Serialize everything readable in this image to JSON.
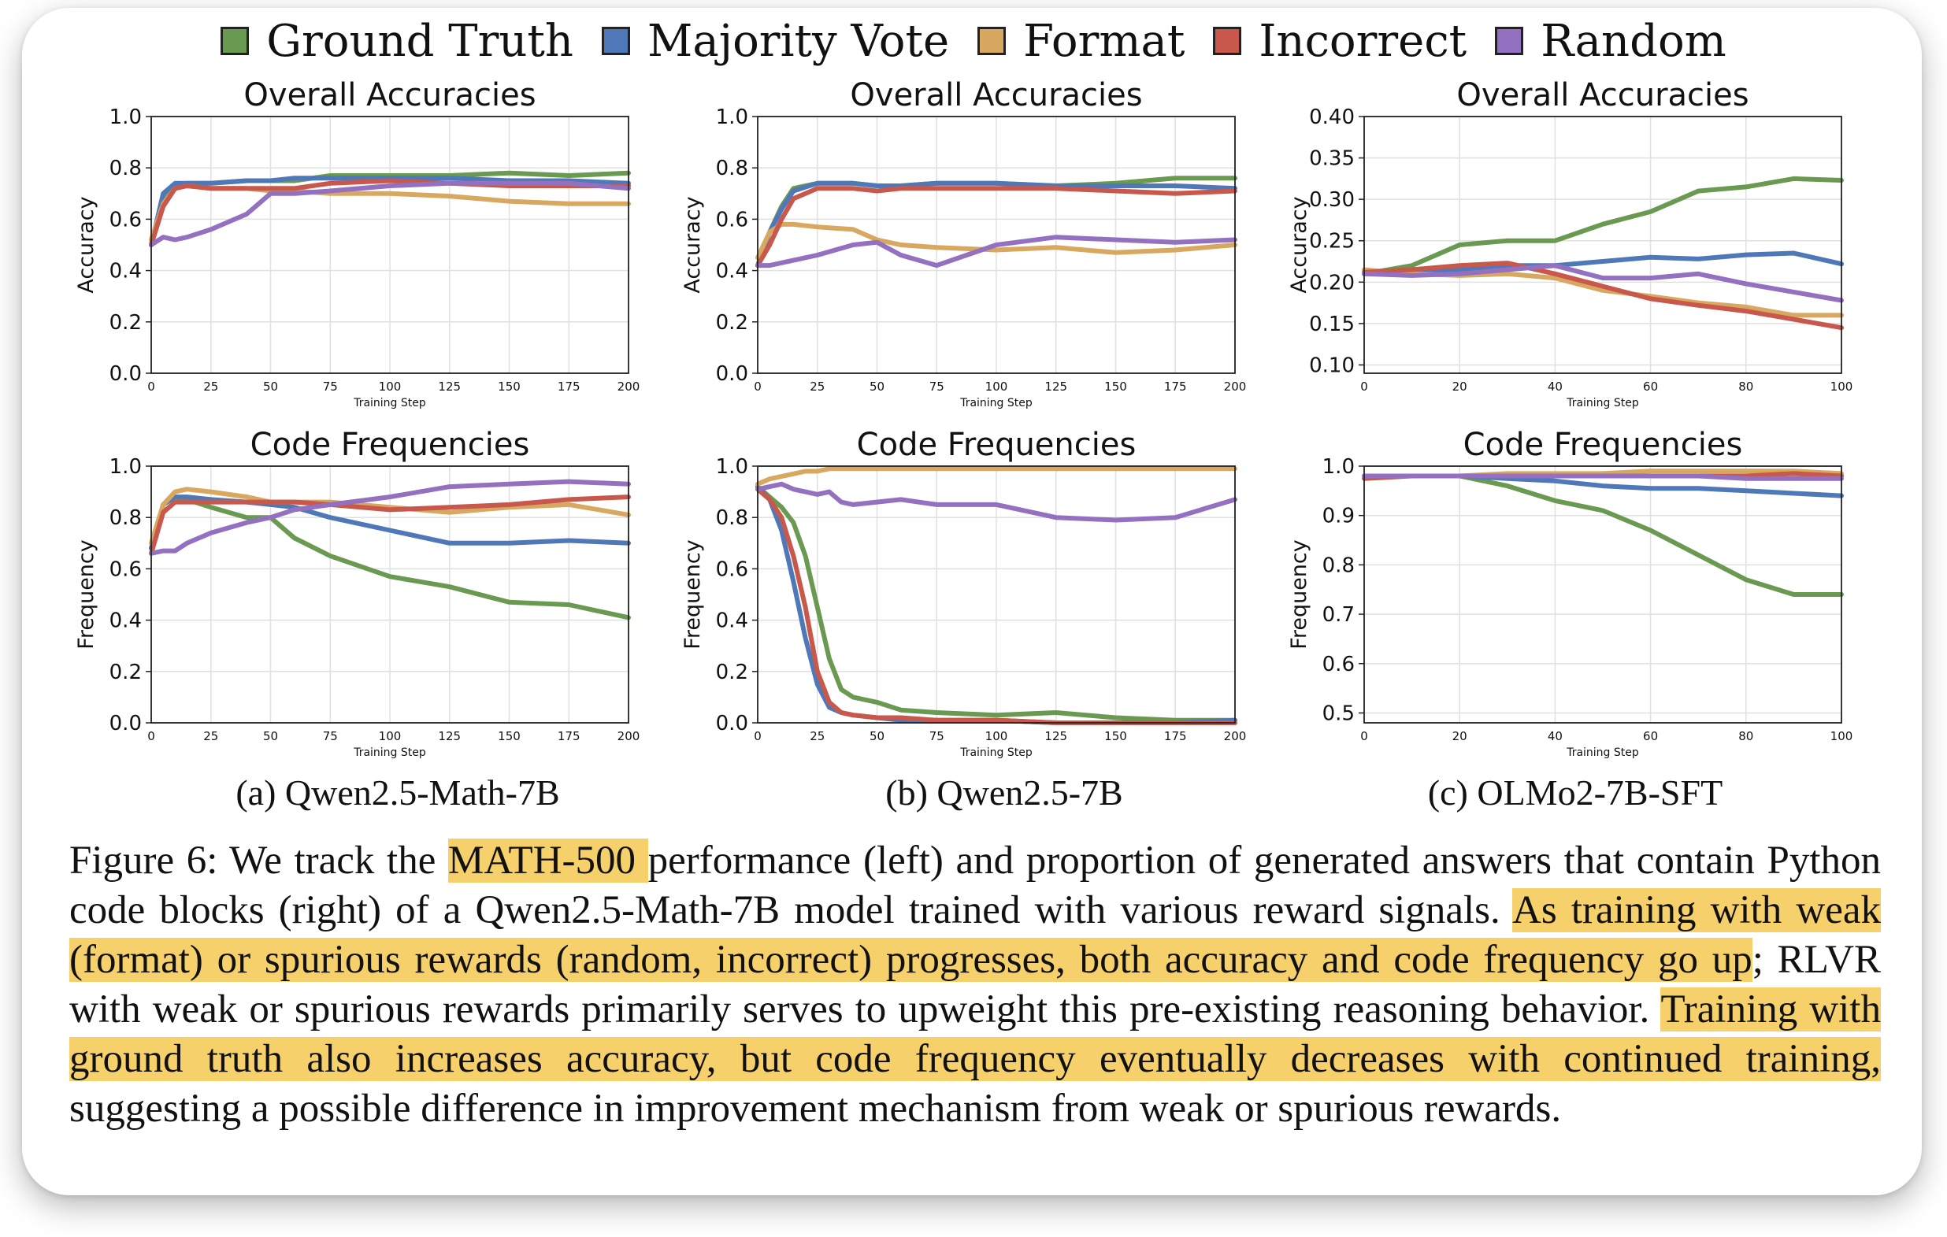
{
  "legend": [
    {
      "label": "Ground Truth",
      "color": "#6a9a52"
    },
    {
      "label": "Majority Vote",
      "color": "#4f78b8"
    },
    {
      "label": "Format",
      "color": "#d8a860"
    },
    {
      "label": "Incorrect",
      "color": "#c8584c"
    },
    {
      "label": "Random",
      "color": "#9370c0"
    }
  ],
  "subcaptions": [
    "(a) Qwen2.5-Math-7B",
    "(b) Qwen2.5-7B",
    "(c) OLMo2-7B-SFT"
  ],
  "caption": {
    "segments": [
      {
        "text": "Figure 6:  We track the ",
        "highlight": false
      },
      {
        "text": "MATH-500 ",
        "highlight": true
      },
      {
        "text": "performance (left) and proportion of generated answers that contain Python code blocks (right) of a Qwen2.5-Math-7B model trained with various reward signals. ",
        "highlight": false
      },
      {
        "text": "As training with weak (format) or spurious rewards (random, incorrect) progresses, both accuracy and code frequency go up",
        "highlight": true
      },
      {
        "text": "; RLVR with weak or spurious rewards primarily serves to upweight this pre-existing reasoning behavior. ",
        "highlight": false
      },
      {
        "text": "Training with ground truth also increases accuracy, but code frequency eventually decreases with continued training,",
        "highlight": true
      },
      {
        "text": " suggesting a possible difference in improvement mechanism from weak or spurious rewards.",
        "highlight": false
      }
    ]
  },
  "chart_data": [
    {
      "type": "line",
      "title": "Overall Accuracies",
      "xlabel": "Training Step",
      "ylabel": "Accuracy",
      "xlim": [
        0,
        200
      ],
      "ylim": [
        0,
        1.0
      ],
      "xticks": [
        "0",
        "25",
        "50",
        "75",
        "100",
        "125",
        "150",
        "175",
        "200"
      ],
      "yticks": [
        "0.0",
        "0.2",
        "0.4",
        "0.6",
        "0.8",
        "1.0"
      ],
      "grid": true,
      "x": [
        0,
        5,
        10,
        15,
        25,
        40,
        50,
        60,
        75,
        100,
        125,
        150,
        175,
        200
      ],
      "series": [
        {
          "name": "Ground Truth",
          "values": [
            0.5,
            0.68,
            0.73,
            0.74,
            0.74,
            0.75,
            0.75,
            0.75,
            0.77,
            0.77,
            0.77,
            0.78,
            0.77,
            0.78
          ]
        },
        {
          "name": "Majority Vote",
          "values": [
            0.5,
            0.7,
            0.74,
            0.74,
            0.74,
            0.75,
            0.75,
            0.76,
            0.76,
            0.76,
            0.76,
            0.75,
            0.75,
            0.74
          ]
        },
        {
          "name": "Format",
          "values": [
            0.52,
            0.66,
            0.72,
            0.73,
            0.72,
            0.72,
            0.71,
            0.71,
            0.7,
            0.7,
            0.69,
            0.67,
            0.66,
            0.66
          ]
        },
        {
          "name": "Incorrect",
          "values": [
            0.5,
            0.65,
            0.72,
            0.73,
            0.72,
            0.72,
            0.72,
            0.72,
            0.74,
            0.75,
            0.74,
            0.73,
            0.73,
            0.73
          ]
        },
        {
          "name": "Random",
          "values": [
            0.5,
            0.53,
            0.52,
            0.53,
            0.56,
            0.62,
            0.7,
            0.7,
            0.71,
            0.73,
            0.74,
            0.74,
            0.74,
            0.72
          ]
        }
      ]
    },
    {
      "type": "line",
      "title": "Overall Accuracies",
      "xlabel": "Training Step",
      "ylabel": "Accuracy",
      "xlim": [
        0,
        200
      ],
      "ylim": [
        0,
        1.0
      ],
      "xticks": [
        "0",
        "25",
        "50",
        "75",
        "100",
        "125",
        "150",
        "175",
        "200"
      ],
      "yticks": [
        "0.0",
        "0.2",
        "0.4",
        "0.6",
        "0.8",
        "1.0"
      ],
      "grid": true,
      "x": [
        0,
        5,
        10,
        15,
        25,
        40,
        50,
        60,
        75,
        100,
        125,
        150,
        175,
        200
      ],
      "series": [
        {
          "name": "Ground Truth",
          "values": [
            0.42,
            0.55,
            0.65,
            0.72,
            0.74,
            0.74,
            0.73,
            0.73,
            0.74,
            0.74,
            0.73,
            0.74,
            0.76,
            0.76
          ]
        },
        {
          "name": "Majority Vote",
          "values": [
            0.42,
            0.55,
            0.64,
            0.71,
            0.74,
            0.74,
            0.73,
            0.73,
            0.74,
            0.74,
            0.73,
            0.73,
            0.73,
            0.72
          ]
        },
        {
          "name": "Format",
          "values": [
            0.45,
            0.55,
            0.58,
            0.58,
            0.57,
            0.56,
            0.52,
            0.5,
            0.49,
            0.48,
            0.49,
            0.47,
            0.48,
            0.5
          ]
        },
        {
          "name": "Incorrect",
          "values": [
            0.42,
            0.5,
            0.6,
            0.68,
            0.72,
            0.72,
            0.71,
            0.72,
            0.72,
            0.72,
            0.72,
            0.71,
            0.7,
            0.71
          ]
        },
        {
          "name": "Random",
          "values": [
            0.42,
            0.42,
            0.43,
            0.44,
            0.46,
            0.5,
            0.51,
            0.46,
            0.42,
            0.5,
            0.53,
            0.52,
            0.51,
            0.52
          ]
        }
      ]
    },
    {
      "type": "line",
      "title": "Overall Accuracies",
      "xlabel": "Training Step",
      "ylabel": "Accuracy",
      "xlim": [
        0,
        100
      ],
      "ylim": [
        0.09,
        0.4
      ],
      "xticks": [
        "0",
        "20",
        "40",
        "60",
        "80",
        "100"
      ],
      "yticks": [
        "0.10",
        "0.15",
        "0.20",
        "0.25",
        "0.30",
        "0.35",
        "0.40"
      ],
      "grid": true,
      "x": [
        0,
        10,
        20,
        30,
        40,
        50,
        60,
        70,
        80,
        90,
        100
      ],
      "series": [
        {
          "name": "Ground Truth",
          "values": [
            0.21,
            0.22,
            0.245,
            0.25,
            0.25,
            0.27,
            0.285,
            0.31,
            0.315,
            0.325,
            0.323
          ]
        },
        {
          "name": "Majority Vote",
          "values": [
            0.21,
            0.21,
            0.215,
            0.22,
            0.22,
            0.225,
            0.23,
            0.228,
            0.233,
            0.235,
            0.222
          ]
        },
        {
          "name": "Format",
          "values": [
            0.215,
            0.21,
            0.208,
            0.21,
            0.205,
            0.19,
            0.183,
            0.175,
            0.17,
            0.16,
            0.16
          ]
        },
        {
          "name": "Incorrect",
          "values": [
            0.212,
            0.215,
            0.22,
            0.223,
            0.21,
            0.195,
            0.18,
            0.172,
            0.165,
            0.155,
            0.145
          ]
        },
        {
          "name": "Random",
          "values": [
            0.21,
            0.208,
            0.21,
            0.215,
            0.22,
            0.205,
            0.205,
            0.21,
            0.198,
            0.188,
            0.178
          ]
        }
      ]
    },
    {
      "type": "line",
      "title": "Code Frequencies",
      "xlabel": "Training Step",
      "ylabel": "Frequency",
      "xlim": [
        0,
        200
      ],
      "ylim": [
        0,
        1.0
      ],
      "xticks": [
        "0",
        "25",
        "50",
        "75",
        "100",
        "125",
        "150",
        "175",
        "200"
      ],
      "yticks": [
        "0.0",
        "0.2",
        "0.4",
        "0.6",
        "0.8",
        "1.0"
      ],
      "grid": true,
      "x": [
        0,
        5,
        10,
        15,
        25,
        40,
        50,
        60,
        75,
        100,
        125,
        150,
        175,
        200
      ],
      "series": [
        {
          "name": "Ground Truth",
          "values": [
            0.68,
            0.85,
            0.88,
            0.87,
            0.84,
            0.8,
            0.8,
            0.72,
            0.65,
            0.57,
            0.53,
            0.47,
            0.46,
            0.41
          ]
        },
        {
          "name": "Majority Vote",
          "values": [
            0.68,
            0.85,
            0.88,
            0.88,
            0.87,
            0.86,
            0.85,
            0.84,
            0.8,
            0.75,
            0.7,
            0.7,
            0.71,
            0.7
          ]
        },
        {
          "name": "Format",
          "values": [
            0.7,
            0.85,
            0.9,
            0.91,
            0.9,
            0.88,
            0.86,
            0.86,
            0.86,
            0.84,
            0.82,
            0.84,
            0.85,
            0.81
          ]
        },
        {
          "name": "Incorrect",
          "values": [
            0.66,
            0.82,
            0.86,
            0.86,
            0.86,
            0.86,
            0.86,
            0.86,
            0.85,
            0.83,
            0.84,
            0.85,
            0.87,
            0.88
          ]
        },
        {
          "name": "Random",
          "values": [
            0.66,
            0.67,
            0.67,
            0.7,
            0.74,
            0.78,
            0.8,
            0.83,
            0.85,
            0.88,
            0.92,
            0.93,
            0.94,
            0.93
          ]
        }
      ]
    },
    {
      "type": "line",
      "title": "Code Frequencies",
      "xlabel": "Training Step",
      "ylabel": "Frequency",
      "xlim": [
        0,
        200
      ],
      "ylim": [
        0,
        1.0
      ],
      "xticks": [
        "0",
        "25",
        "50",
        "75",
        "100",
        "125",
        "150",
        "175",
        "200"
      ],
      "yticks": [
        "0.0",
        "0.2",
        "0.4",
        "0.6",
        "0.8",
        "1.0"
      ],
      "grid": true,
      "x": [
        0,
        5,
        10,
        15,
        20,
        25,
        30,
        35,
        40,
        50,
        60,
        75,
        100,
        125,
        150,
        175,
        200
      ],
      "series": [
        {
          "name": "Ground Truth",
          "values": [
            0.92,
            0.88,
            0.84,
            0.78,
            0.65,
            0.45,
            0.25,
            0.13,
            0.1,
            0.08,
            0.05,
            0.04,
            0.03,
            0.04,
            0.02,
            0.01,
            0.01
          ]
        },
        {
          "name": "Majority Vote",
          "values": [
            0.92,
            0.87,
            0.75,
            0.55,
            0.33,
            0.15,
            0.06,
            0.04,
            0.03,
            0.02,
            0.01,
            0.01,
            0.01,
            0.0,
            0.0,
            0.0,
            0.01
          ]
        },
        {
          "name": "Format",
          "values": [
            0.93,
            0.95,
            0.96,
            0.97,
            0.98,
            0.98,
            0.99,
            0.99,
            0.99,
            0.99,
            0.99,
            0.99,
            0.99,
            0.99,
            0.99,
            0.99,
            0.99
          ]
        },
        {
          "name": "Incorrect",
          "values": [
            0.91,
            0.87,
            0.8,
            0.65,
            0.45,
            0.2,
            0.08,
            0.04,
            0.03,
            0.02,
            0.02,
            0.01,
            0.01,
            0.0,
            0.0,
            0.0,
            0.0
          ]
        },
        {
          "name": "Random",
          "values": [
            0.91,
            0.92,
            0.93,
            0.91,
            0.9,
            0.89,
            0.9,
            0.86,
            0.85,
            0.86,
            0.87,
            0.85,
            0.85,
            0.8,
            0.79,
            0.8,
            0.87
          ]
        }
      ]
    },
    {
      "type": "line",
      "title": "Code Frequencies",
      "xlabel": "Training Step",
      "ylabel": "Frequency",
      "xlim": [
        0,
        100
      ],
      "ylim": [
        0.48,
        1.0
      ],
      "xticks": [
        "0",
        "20",
        "40",
        "60",
        "80",
        "100"
      ],
      "yticks": [
        "0.5",
        "0.6",
        "0.7",
        "0.8",
        "0.9",
        "1.0"
      ],
      "grid": true,
      "x": [
        0,
        10,
        20,
        30,
        40,
        50,
        60,
        70,
        80,
        90,
        100
      ],
      "series": [
        {
          "name": "Ground Truth",
          "values": [
            0.98,
            0.98,
            0.98,
            0.96,
            0.93,
            0.91,
            0.87,
            0.82,
            0.77,
            0.74,
            0.74
          ]
        },
        {
          "name": "Majority Vote",
          "values": [
            0.98,
            0.98,
            0.98,
            0.975,
            0.97,
            0.96,
            0.955,
            0.955,
            0.95,
            0.945,
            0.94
          ]
        },
        {
          "name": "Format",
          "values": [
            0.98,
            0.98,
            0.98,
            0.985,
            0.985,
            0.985,
            0.99,
            0.99,
            0.99,
            0.99,
            0.985
          ]
        },
        {
          "name": "Incorrect",
          "values": [
            0.975,
            0.98,
            0.98,
            0.98,
            0.98,
            0.98,
            0.98,
            0.98,
            0.98,
            0.985,
            0.98
          ]
        },
        {
          "name": "Random",
          "values": [
            0.98,
            0.98,
            0.98,
            0.98,
            0.98,
            0.98,
            0.98,
            0.98,
            0.975,
            0.975,
            0.975
          ]
        }
      ]
    }
  ]
}
